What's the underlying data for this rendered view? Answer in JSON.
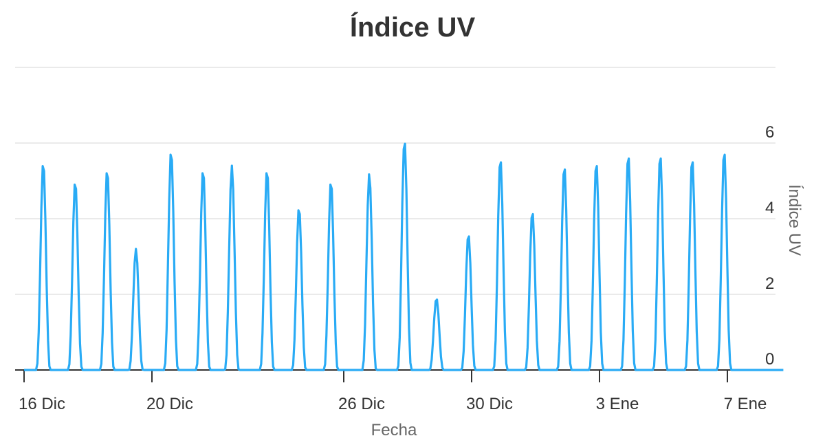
{
  "chart_data": {
    "type": "line",
    "title": "Índice UV",
    "xlabel": "Fecha",
    "ylabel": "Índice UV",
    "ylim": [
      0,
      8
    ],
    "yticks": [
      0,
      2,
      4,
      6
    ],
    "y_axis_position": "right",
    "grid": true,
    "legend": "none",
    "x_range_days": [
      0,
      23.75
    ],
    "x_ticks": [
      {
        "label": "16 Dic",
        "day": 0
      },
      {
        "label": "20 Dic",
        "day": 4
      },
      {
        "label": "26 Dic",
        "day": 10
      },
      {
        "label": "30 Dic",
        "day": 14
      },
      {
        "label": "3 Ene",
        "day": 18
      },
      {
        "label": "7 Ene",
        "day": 22
      }
    ],
    "daily_peaks": [
      5.5,
      5.0,
      5.3,
      3.2,
      5.8,
      5.3,
      5.4,
      5.3,
      4.3,
      5.0,
      5.2,
      6.1,
      1.9,
      3.6,
      5.6,
      4.2,
      5.4,
      5.5,
      5.7,
      5.7,
      5.6,
      5.8
    ],
    "peak_times_days": [
      0.6,
      1.6,
      2.6,
      3.5,
      4.6,
      5.6,
      6.5,
      7.6,
      8.6,
      9.6,
      10.8,
      11.9,
      12.9,
      13.9,
      14.9,
      15.9,
      16.9,
      17.9,
      18.9,
      19.9,
      20.9,
      21.9
    ],
    "series": [
      {
        "color": "#29abf5"
      }
    ]
  }
}
